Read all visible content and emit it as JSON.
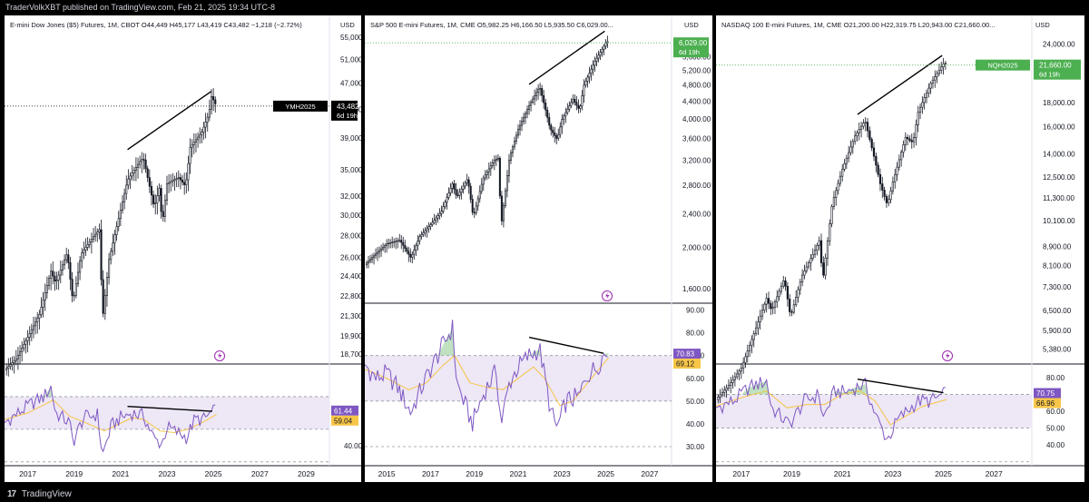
{
  "header": {
    "publisher_text": "TraderVolkXBT published on TradingView.com, Feb 21, 2025 19:34 UTC-8"
  },
  "footer": {
    "logo_text": "TradingView"
  },
  "colors": {
    "up": "#131722",
    "line_black": "#000000",
    "rsi": "#7e57c2",
    "rsi_ma": "#f7c548",
    "badge_black": "#000000",
    "badge_green": "#4caf50",
    "badge_purple": "#7e57c2",
    "badge_yellow": "#f7c548",
    "rsi_band": "#ede7f6",
    "price_line_black": "#000000",
    "price_line_green": "#4caf50"
  },
  "chart_data": [
    {
      "type": "candlestick",
      "title": "E-mini Dow Jones ($5) Futures, 1M, CBOT  O44,449  H45,177  L43,419  C43,482  −1,218 (−2.72%)",
      "currency": "USD",
      "symbol_badge": "YMH2025",
      "last_price": "43,482",
      "countdown": "6d 19h",
      "y_scale": "log",
      "y_ticks": [
        "55,000",
        "51,000",
        "47,000",
        "43,000",
        "39,000",
        "35,000",
        "32,000",
        "30,000",
        "28,000",
        "26,000",
        "24,400",
        "22,800",
        "21,300",
        "19,900",
        "18,700"
      ],
      "x_ticks": [
        "2017",
        "2019",
        "2021",
        "2023",
        "2025",
        "2027",
        "2029"
      ],
      "price_series": [
        [
          2016.0,
          17700
        ],
        [
          2016.5,
          18400
        ],
        [
          2017.0,
          19800
        ],
        [
          2017.5,
          21400
        ],
        [
          2018.0,
          24800
        ],
        [
          2018.2,
          23800
        ],
        [
          2018.7,
          26400
        ],
        [
          2018.95,
          22300
        ],
        [
          2019.3,
          26300
        ],
        [
          2019.8,
          27800
        ],
        [
          2020.1,
          28600
        ],
        [
          2020.22,
          21000
        ],
        [
          2020.5,
          25800
        ],
        [
          2020.9,
          29500
        ],
        [
          2021.3,
          33800
        ],
        [
          2021.9,
          36300
        ],
        [
          2022.0,
          36200
        ],
        [
          2022.45,
          30800
        ],
        [
          2022.7,
          33200
        ],
        [
          2022.78,
          28800
        ],
        [
          2023.0,
          33400
        ],
        [
          2023.5,
          34100
        ],
        [
          2023.8,
          33100
        ],
        [
          2024.0,
          37800
        ],
        [
          2024.5,
          39800
        ],
        [
          2024.8,
          42300
        ],
        [
          2024.92,
          45000
        ],
        [
          2025.13,
          43482
        ]
      ],
      "trendline": [
        [
          2021.3,
          37500
        ],
        [
          2024.9,
          45700
        ]
      ],
      "rsi_ticks": [
        "40.00"
      ],
      "rsi_values": {
        "rsi": "61.44",
        "ma": "59.04"
      },
      "rsi_band": [
        50,
        70
      ],
      "rsi_series": [
        [
          2016.0,
          54
        ],
        [
          2016.6,
          60
        ],
        [
          2017.2,
          66
        ],
        [
          2017.7,
          70
        ],
        [
          2018.0,
          76
        ],
        [
          2018.2,
          60
        ],
        [
          2018.8,
          54
        ],
        [
          2018.95,
          42
        ],
        [
          2019.4,
          57
        ],
        [
          2020.0,
          59
        ],
        [
          2020.22,
          34
        ],
        [
          2020.6,
          52
        ],
        [
          2021.0,
          57
        ],
        [
          2021.5,
          60
        ],
        [
          2022.0,
          58
        ],
        [
          2022.45,
          44
        ],
        [
          2022.78,
          41
        ],
        [
          2023.0,
          51
        ],
        [
          2023.6,
          47
        ],
        [
          2023.85,
          45
        ],
        [
          2024.2,
          56
        ],
        [
          2024.6,
          56
        ],
        [
          2024.9,
          60
        ],
        [
          2025.13,
          61.44
        ]
      ],
      "rsi_ma_series": [
        [
          2016.0,
          56
        ],
        [
          2017.0,
          60
        ],
        [
          2017.7,
          65
        ],
        [
          2018.1,
          68
        ],
        [
          2018.8,
          58
        ],
        [
          2019.5,
          54
        ],
        [
          2020.3,
          49
        ],
        [
          2020.9,
          53
        ],
        [
          2021.5,
          57
        ],
        [
          2022.0,
          56
        ],
        [
          2022.7,
          49
        ],
        [
          2023.3,
          48
        ],
        [
          2023.9,
          50
        ],
        [
          2024.5,
          54
        ],
        [
          2025.13,
          59.04
        ]
      ],
      "rsi_trendline": [
        [
          2021.3,
          64
        ],
        [
          2024.95,
          61
        ]
      ]
    },
    {
      "type": "candlestick",
      "title": "S&P 500 E-mini Futures, 1M, CME  O5,982.25  H6,166.50  L5,935.50  C6,029.00...",
      "currency": "USD",
      "last_price": "6,029.00",
      "countdown": "6d 19h",
      "y_scale": "log",
      "y_ticks": [
        "5,600.00",
        "5,200.00",
        "4,800.00",
        "4,400.00",
        "4,000.00",
        "3,600.00",
        "3,200.00",
        "2,800.00",
        "2,400.00",
        "2,000.00",
        "1,600.00"
      ],
      "x_ticks": [
        "2015",
        "2017",
        "2019",
        "2021",
        "2023",
        "2025",
        "2027"
      ],
      "price_series": [
        [
          2014.0,
          1820
        ],
        [
          2014.5,
          1930
        ],
        [
          2015.0,
          2040
        ],
        [
          2015.6,
          2080
        ],
        [
          2016.1,
          1890
        ],
        [
          2016.5,
          2120
        ],
        [
          2017.0,
          2260
        ],
        [
          2017.5,
          2430
        ],
        [
          2018.0,
          2820
        ],
        [
          2018.2,
          2620
        ],
        [
          2018.7,
          2900
        ],
        [
          2018.95,
          2350
        ],
        [
          2019.4,
          2900
        ],
        [
          2019.9,
          3200
        ],
        [
          2020.1,
          3240
        ],
        [
          2020.22,
          2240
        ],
        [
          2020.6,
          3250
        ],
        [
          2021.0,
          3780
        ],
        [
          2021.5,
          4300
        ],
        [
          2021.98,
          4760
        ],
        [
          2022.3,
          4100
        ],
        [
          2022.45,
          3800
        ],
        [
          2022.78,
          3580
        ],
        [
          2023.0,
          3990
        ],
        [
          2023.5,
          4450
        ],
        [
          2023.8,
          4190
        ],
        [
          2024.0,
          4800
        ],
        [
          2024.5,
          5460
        ],
        [
          2024.9,
          5900
        ],
        [
          2025.05,
          6100
        ],
        [
          2025.13,
          6029
        ]
      ],
      "trendline": [
        [
          2021.5,
          4820
        ],
        [
          2024.95,
          6420
        ]
      ],
      "rsi_ticks": [
        "90.00",
        "80.00",
        "70.00",
        "60.00",
        "50.00",
        "40.00",
        "30.00"
      ],
      "rsi_values": {
        "rsi": "70.83",
        "ma": "69.12"
      },
      "rsi_band": [
        50,
        70
      ],
      "rsi_series": [
        [
          2014.0,
          66
        ],
        [
          2014.5,
          60
        ],
        [
          2015.0,
          62
        ],
        [
          2015.5,
          56
        ],
        [
          2016.1,
          45
        ],
        [
          2016.6,
          56
        ],
        [
          2017.0,
          64
        ],
        [
          2017.7,
          77
        ],
        [
          2018.0,
          82
        ],
        [
          2018.2,
          58
        ],
        [
          2018.9,
          40
        ],
        [
          2019.5,
          55
        ],
        [
          2020.0,
          63
        ],
        [
          2020.22,
          40
        ],
        [
          2020.6,
          58
        ],
        [
          2021.0,
          65
        ],
        [
          2021.5,
          70
        ],
        [
          2021.98,
          73
        ],
        [
          2022.5,
          45
        ],
        [
          2022.78,
          38
        ],
        [
          2023.2,
          50
        ],
        [
          2023.8,
          52
        ],
        [
          2024.1,
          61
        ],
        [
          2024.6,
          65
        ],
        [
          2024.95,
          71
        ],
        [
          2025.13,
          70.83
        ]
      ],
      "rsi_ma_series": [
        [
          2014.0,
          64
        ],
        [
          2015.0,
          60
        ],
        [
          2016.0,
          55
        ],
        [
          2016.8,
          58
        ],
        [
          2017.6,
          66
        ],
        [
          2018.1,
          70
        ],
        [
          2018.8,
          58
        ],
        [
          2019.6,
          56
        ],
        [
          2020.3,
          55
        ],
        [
          2021.0,
          60
        ],
        [
          2021.7,
          65
        ],
        [
          2022.2,
          60
        ],
        [
          2022.9,
          48
        ],
        [
          2023.5,
          50
        ],
        [
          2024.0,
          56
        ],
        [
          2024.6,
          63
        ],
        [
          2025.13,
          69.12
        ]
      ],
      "rsi_trendline": [
        [
          2021.5,
          78
        ],
        [
          2024.9,
          71
        ]
      ]
    },
    {
      "type": "candlestick",
      "title": "NASDAQ 100 E-mini Futures, 1M, CME  O21,200.00  H22,319.75  L20,943.00  C21,660.00...",
      "currency": "USD",
      "symbol_badge": "NQH2025",
      "last_price": "21,660.00",
      "countdown": "6d 19h",
      "y_scale": "log",
      "y_ticks": [
        "24,000.00",
        "18,000.00",
        "16,000.00",
        "14,000.00",
        "12,500.00",
        "11,300.00",
        "10,100.00",
        "8,900.00",
        "8,100.00",
        "7,300.00",
        "6,500.00",
        "5,900.00",
        "5,380.00"
      ],
      "x_ticks": [
        "2017",
        "2019",
        "2021",
        "2023",
        "2025",
        "2027"
      ],
      "price_series": [
        [
          2016.0,
          4200
        ],
        [
          2016.5,
          4500
        ],
        [
          2017.0,
          4900
        ],
        [
          2017.5,
          5800
        ],
        [
          2018.0,
          6900
        ],
        [
          2018.2,
          6500
        ],
        [
          2018.7,
          7600
        ],
        [
          2018.95,
          6300
        ],
        [
          2019.4,
          7700
        ],
        [
          2019.9,
          8700
        ],
        [
          2020.1,
          9200
        ],
        [
          2020.22,
          7500
        ],
        [
          2020.6,
          11000
        ],
        [
          2021.0,
          13000
        ],
        [
          2021.5,
          15300
        ],
        [
          2021.9,
          16500
        ],
        [
          2022.3,
          13500
        ],
        [
          2022.5,
          12100
        ],
        [
          2022.78,
          10900
        ],
        [
          2023.0,
          12200
        ],
        [
          2023.5,
          15200
        ],
        [
          2023.8,
          14800
        ],
        [
          2024.0,
          17200
        ],
        [
          2024.5,
          19800
        ],
        [
          2024.9,
          21400
        ],
        [
          2025.05,
          22000
        ],
        [
          2025.13,
          21660
        ]
      ],
      "trendline": [
        [
          2021.6,
          17000
        ],
        [
          2024.95,
          22700
        ]
      ],
      "rsi_ticks": [
        "80.00",
        "60.00",
        "50.00",
        "40.00"
      ],
      "rsi_values": {
        "rsi": "70.75",
        "ma": "66.96"
      },
      "rsi_band": [
        50,
        70
      ],
      "rsi_series": [
        [
          2016.0,
          62
        ],
        [
          2016.7,
          66
        ],
        [
          2017.3,
          74
        ],
        [
          2018.0,
          78
        ],
        [
          2018.2,
          62
        ],
        [
          2018.9,
          52
        ],
        [
          2019.5,
          66
        ],
        [
          2020.1,
          70
        ],
        [
          2020.22,
          55
        ],
        [
          2020.7,
          72
        ],
        [
          2021.1,
          71
        ],
        [
          2021.5,
          74
        ],
        [
          2021.9,
          76
        ],
        [
          2022.3,
          58
        ],
        [
          2022.78,
          43
        ],
        [
          2023.2,
          55
        ],
        [
          2023.7,
          62
        ],
        [
          2024.0,
          66
        ],
        [
          2024.5,
          66
        ],
        [
          2024.9,
          69
        ],
        [
          2025.13,
          70.75
        ]
      ],
      "rsi_ma_series": [
        [
          2016.0,
          63
        ],
        [
          2017.0,
          68
        ],
        [
          2018.0,
          72
        ],
        [
          2018.8,
          62
        ],
        [
          2019.6,
          64
        ],
        [
          2020.3,
          64
        ],
        [
          2021.0,
          70
        ],
        [
          2021.7,
          72
        ],
        [
          2022.3,
          66
        ],
        [
          2022.9,
          52
        ],
        [
          2023.5,
          57
        ],
        [
          2024.2,
          63
        ],
        [
          2025.13,
          66.96
        ]
      ],
      "rsi_trendline": [
        [
          2021.6,
          79
        ],
        [
          2025.0,
          71
        ]
      ]
    }
  ]
}
